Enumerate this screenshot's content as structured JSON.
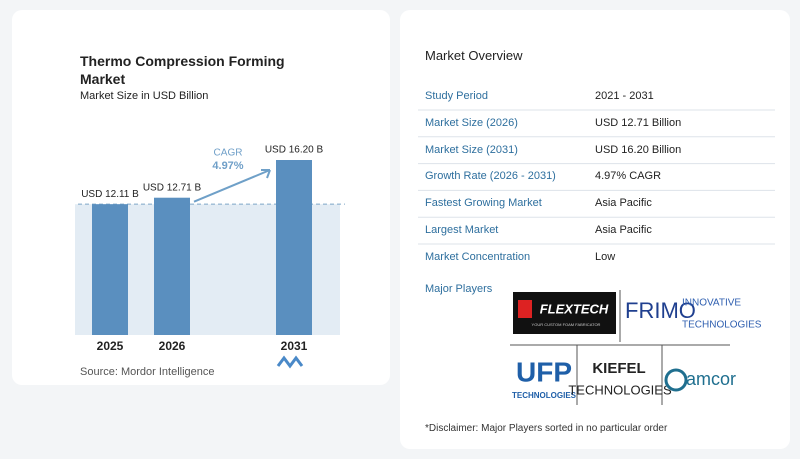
{
  "chart_data": {
    "type": "bar",
    "title": "Thermo Compression Forming Market",
    "subtitle": "Market Size in USD Billion",
    "categories": [
      "2025",
      "2026",
      "2031"
    ],
    "values": [
      12.11,
      12.71,
      16.2
    ],
    "value_labels": [
      "USD 12.11 B",
      "USD 12.71 B",
      "USD 16.20 B"
    ],
    "color": "#5a8fbf",
    "annotation": {
      "label": "CAGR",
      "value_label": "4.97%"
    },
    "source": "Source: Mordor Intelligence"
  },
  "overview": {
    "title": "Market Overview",
    "rows": [
      [
        "Study Period",
        "2021 - 2031"
      ],
      [
        "Market Size (2026)",
        "USD 12.71 Billion"
      ],
      [
        "Market Size (2031)",
        "USD 16.20 Billion"
      ],
      [
        "Growth Rate (2026 - 2031)",
        "4.97% CAGR"
      ],
      [
        "Fastest Growing Market",
        "Asia Pacific"
      ],
      [
        "Largest Market",
        "Asia Pacific"
      ],
      [
        "Market Concentration",
        "Low"
      ]
    ]
  },
  "players": {
    "title": "Major Players",
    "logos": {
      "flextech": [
        "FLEXTECH",
        "YOUR CUSTOM FOAM FABRICATOR"
      ],
      "frimo": [
        "FRIMO",
        "INNOVATIVE",
        "TECHNOLOGIES"
      ],
      "ufp": [
        "UFP",
        "TECHNOLOGIES"
      ],
      "kiefel": [
        "KIEFEL",
        "TECHNOLOGIES"
      ],
      "amcor": [
        "amcor"
      ]
    }
  },
  "disclaimer": "*Disclaimer: Major Players sorted in no particular order"
}
